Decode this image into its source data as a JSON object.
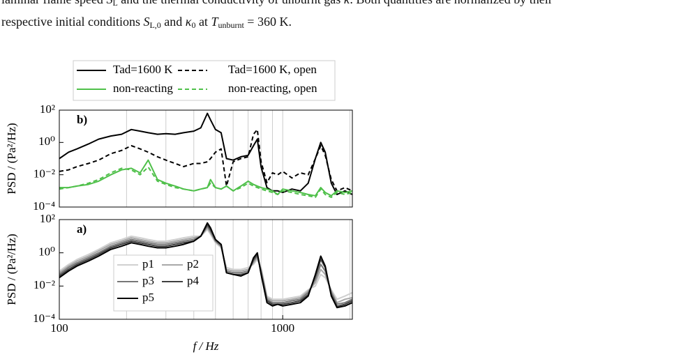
{
  "text": [
    [
      {
        "text": "laminar flame speed ",
        "style": "normal"
      },
      {
        "text": "S",
        "style": "italic"
      },
      {
        "text": "L",
        "style": "sub"
      },
      {
        "text": " and the thermal conductivity of unburnt gas ",
        "style": "normal"
      },
      {
        "text": "κ",
        "style": "italic"
      },
      {
        "text": ". Both quantities are normalized by their",
        "style": "normal"
      }
    ],
    [
      {
        "text": "respective initial conditions ",
        "style": "normal"
      },
      {
        "text": "S",
        "style": "italic"
      },
      {
        "text": "L,0",
        "style": "sub"
      },
      {
        "text": " and ",
        "style": "normal"
      },
      {
        "text": "κ",
        "style": "italic"
      },
      {
        "text": "0",
        "style": "sub"
      },
      {
        "text": " at ",
        "style": "normal"
      },
      {
        "text": "T",
        "style": "italic"
      },
      {
        "text": "unburnt",
        "style": "sub"
      },
      {
        "text": " = 360 K.",
        "style": "normal"
      }
    ]
  ],
  "chart_data": [
    {
      "type": "line",
      "panel_label": "b)",
      "ylabel": "PSD / (Pa²/Hz)",
      "xscale": "log",
      "yscale": "log",
      "xlim": [
        100,
        2050
      ],
      "ylim": [
        0.0001,
        100
      ],
      "yticks": [
        {
          "value": 0.0001,
          "label": "10⁻⁴"
        },
        {
          "value": 0.01,
          "label": "10⁻²"
        },
        {
          "value": 1,
          "label": "10⁰"
        },
        {
          "value": 100,
          "label": "10²"
        }
      ],
      "xgrid": [
        100,
        200,
        300,
        400,
        500,
        600,
        700,
        800,
        900,
        1000,
        2000
      ],
      "legend": "outside-top",
      "x": [
        100,
        110,
        120,
        135,
        150,
        170,
        190,
        210,
        230,
        250,
        275,
        300,
        330,
        360,
        400,
        430,
        460,
        475,
        500,
        530,
        560,
        600,
        650,
        700,
        740,
        770,
        800,
        850,
        900,
        950,
        1000,
        1100,
        1200,
        1300,
        1400,
        1480,
        1550,
        1650,
        1750,
        1900,
        2050
      ],
      "series": [
        {
          "name": "Tad=1600 K",
          "color": "#000000",
          "dash": false,
          "values": [
            0.1,
            0.25,
            0.4,
            0.8,
            1.6,
            2.5,
            3.2,
            6.3,
            5,
            4,
            3.2,
            3.5,
            3.2,
            4,
            5,
            8,
            63,
            25,
            6.3,
            4,
            0.1,
            0.08,
            0.13,
            0.16,
            0.63,
            1.6,
            0.03,
            0.0016,
            0.001,
            0.001,
            0.0008,
            0.0013,
            0.001,
            0.003,
            0.1,
            1,
            0.25,
            0.003,
            0.0006,
            0.001,
            0.0006
          ]
        },
        {
          "name": "Tad=1600 K, open",
          "color": "#000000",
          "dash": true,
          "values": [
            0.016,
            0.02,
            0.032,
            0.05,
            0.08,
            0.2,
            0.32,
            0.63,
            0.4,
            0.25,
            0.13,
            0.08,
            0.05,
            0.032,
            0.05,
            0.05,
            0.063,
            0.1,
            0.25,
            0.4,
            0.002,
            0.063,
            0.1,
            0.13,
            3.2,
            6.3,
            0.063,
            0.0032,
            0.013,
            0.01,
            0.016,
            0.0063,
            0.013,
            0.01,
            0.1,
            0.63,
            0.16,
            0.005,
            0.001,
            0.0016,
            0.001
          ]
        },
        {
          "name": "non-reacting",
          "color": "#4fc04a",
          "dash": false,
          "values": [
            0.0016,
            0.0016,
            0.002,
            0.0025,
            0.004,
            0.01,
            0.02,
            0.025,
            0.013,
            0.08,
            0.005,
            0.003,
            0.002,
            0.0013,
            0.001,
            0.0013,
            0.0016,
            0.005,
            0.0016,
            0.0013,
            0.002,
            0.001,
            0.002,
            0.004,
            0.0025,
            0.002,
            0.0016,
            0.0013,
            0.001,
            0.0006,
            0.0013,
            0.001,
            0.0008,
            0.0006,
            0.0005,
            0.0016,
            0.0008,
            0.0005,
            0.001,
            0.0008,
            0.001
          ]
        },
        {
          "name": "non-reacting, open",
          "color": "#4fc04a",
          "dash": true,
          "values": [
            0.0013,
            0.0016,
            0.002,
            0.003,
            0.005,
            0.013,
            0.025,
            0.02,
            0.01,
            0.03,
            0.004,
            0.0025,
            0.0016,
            0.0013,
            0.001,
            0.0013,
            0.0016,
            0.003,
            0.0016,
            0.0013,
            0.002,
            0.001,
            0.0016,
            0.003,
            0.002,
            0.0016,
            0.0013,
            0.001,
            0.0008,
            0.0006,
            0.001,
            0.0008,
            0.0006,
            0.0005,
            0.0004,
            0.0013,
            0.0006,
            0.0004,
            0.0008,
            0.0006,
            0.0008
          ]
        }
      ]
    },
    {
      "type": "line",
      "panel_label": "a)",
      "ylabel": "PSD / (Pa²/Hz)",
      "xlabel": "f / Hz",
      "xscale": "log",
      "yscale": "log",
      "xlim": [
        100,
        2050
      ],
      "ylim": [
        0.0001,
        100
      ],
      "yticks": [
        {
          "value": 0.0001,
          "label": "10⁻⁴"
        },
        {
          "value": 0.01,
          "label": "10⁻²"
        },
        {
          "value": 1,
          "label": "10⁰"
        },
        {
          "value": 100,
          "label": "10²"
        }
      ],
      "xticks": [
        100,
        1000
      ],
      "xgrid": [
        200,
        300,
        400,
        500,
        600,
        700,
        800,
        900,
        2000
      ],
      "legend": "lower-left",
      "x": [
        100,
        110,
        120,
        135,
        150,
        170,
        190,
        210,
        230,
        250,
        275,
        300,
        330,
        360,
        400,
        430,
        460,
        475,
        500,
        530,
        560,
        600,
        650,
        700,
        740,
        770,
        800,
        850,
        900,
        950,
        1000,
        1100,
        1200,
        1300,
        1400,
        1480,
        1550,
        1650,
        1750,
        1900,
        2050
      ],
      "series": [
        {
          "name": "p1",
          "color": "#d0d0d0",
          "dash": false,
          "values": [
            0.08,
            0.2,
            0.4,
            0.8,
            1.6,
            4,
            6.3,
            10,
            8,
            6.3,
            5,
            5,
            6.3,
            8,
            10,
            10,
            25,
            13,
            4,
            2,
            0.13,
            0.1,
            0.1,
            0.13,
            0.2,
            0.4,
            0.13,
            0.0025,
            0.0016,
            0.0016,
            0.0016,
            0.002,
            0.0025,
            0.006,
            0.01,
            0.05,
            0.032,
            0.006,
            0.0016,
            0.0025,
            0.004
          ]
        },
        {
          "name": "p2",
          "color": "#a8a8a8",
          "dash": false,
          "values": [
            0.063,
            0.16,
            0.32,
            0.63,
            1.3,
            3.2,
            5,
            8,
            6.3,
            5,
            4,
            4,
            5,
            6.3,
            8,
            10,
            32,
            16,
            5,
            2.5,
            0.1,
            0.08,
            0.08,
            0.1,
            0.25,
            0.5,
            0.1,
            0.002,
            0.0013,
            0.0013,
            0.0013,
            0.0016,
            0.002,
            0.005,
            0.016,
            0.1,
            0.05,
            0.005,
            0.001,
            0.0016,
            0.002
          ]
        },
        {
          "name": "p3",
          "color": "#777777",
          "dash": false,
          "values": [
            0.05,
            0.13,
            0.25,
            0.5,
            1,
            2.5,
            4,
            6.3,
            5,
            4,
            3.2,
            3.2,
            4,
            5,
            6.3,
            10,
            40,
            20,
            5,
            2.5,
            0.08,
            0.063,
            0.063,
            0.08,
            0.32,
            0.63,
            0.08,
            0.0016,
            0.001,
            0.001,
            0.001,
            0.0013,
            0.0016,
            0.004,
            0.025,
            0.2,
            0.08,
            0.004,
            0.0008,
            0.001,
            0.0016
          ]
        },
        {
          "name": "p4",
          "color": "#404040",
          "dash": false,
          "values": [
            0.04,
            0.1,
            0.2,
            0.4,
            0.8,
            2,
            3.2,
            5,
            4,
            3.2,
            2.5,
            2.5,
            3.2,
            4,
            5,
            10,
            50,
            25,
            6.3,
            3.2,
            0.063,
            0.05,
            0.05,
            0.063,
            0.4,
            0.8,
            0.063,
            0.0013,
            0.0008,
            0.0008,
            0.0008,
            0.001,
            0.0013,
            0.003,
            0.04,
            0.4,
            0.13,
            0.003,
            0.0006,
            0.0008,
            0.0013
          ]
        },
        {
          "name": "p5",
          "color": "#000000",
          "dash": false,
          "values": [
            0.032,
            0.08,
            0.16,
            0.32,
            0.63,
            1.6,
            2.5,
            4,
            3.2,
            2.5,
            2,
            2,
            2.5,
            3.2,
            5,
            10,
            63,
            32,
            6.3,
            3.2,
            0.063,
            0.05,
            0.04,
            0.063,
            0.5,
            1,
            0.05,
            0.001,
            0.00063,
            0.0008,
            0.00063,
            0.0008,
            0.001,
            0.0025,
            0.05,
            0.63,
            0.16,
            0.0025,
            0.0005,
            0.00063,
            0.001
          ]
        }
      ]
    }
  ]
}
